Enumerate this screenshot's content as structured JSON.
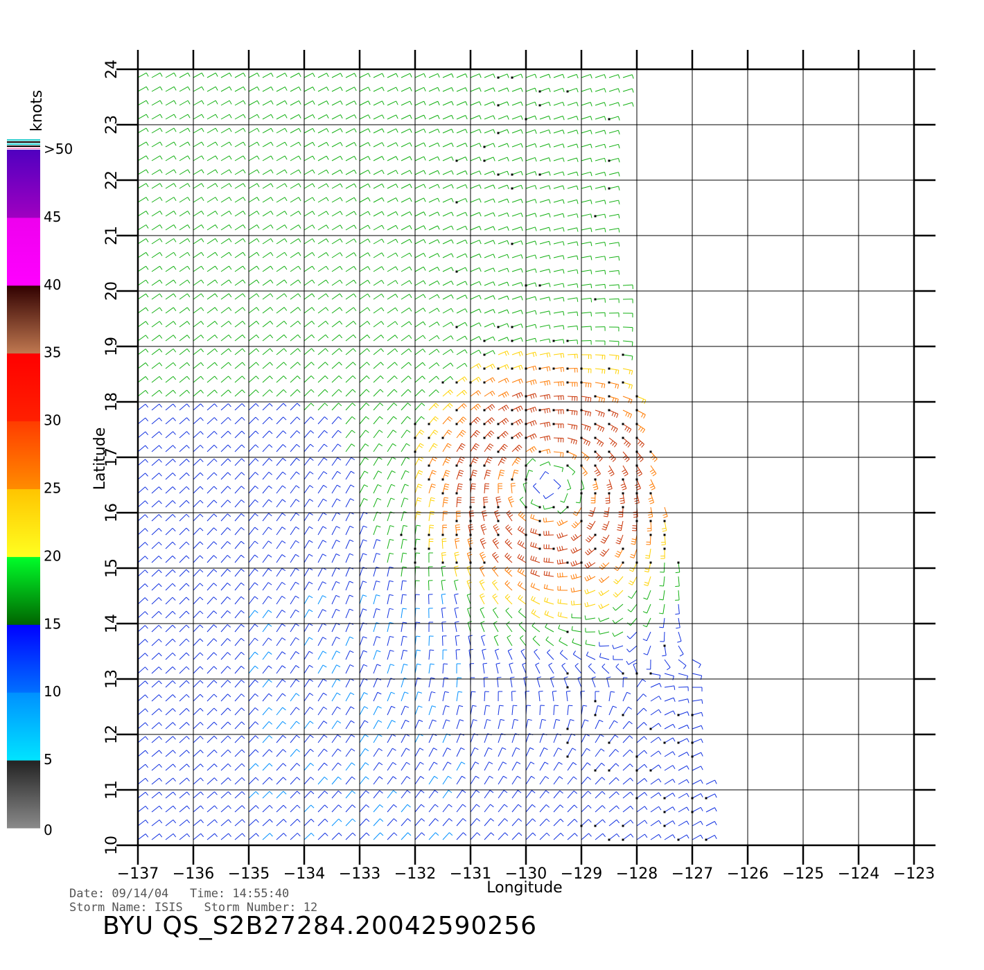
{
  "map": {
    "lon_range": [
      -137,
      -123
    ],
    "lat_range": [
      10,
      24
    ],
    "lon_ticks": [
      -137,
      -136,
      -135,
      -134,
      -133,
      -132,
      -131,
      -130,
      -129,
      -128,
      -127,
      -126,
      -125,
      -124,
      -123
    ],
    "lat_ticks": [
      10,
      11,
      12,
      13,
      14,
      15,
      16,
      17,
      18,
      19,
      20,
      21,
      22,
      23,
      24
    ],
    "grid": true,
    "xlabel": "Longitude",
    "ylabel": "Latitude",
    "storm_center_approx": {
      "lon": -129.6,
      "lat": 16.5
    },
    "layers": [
      "wind-barbs",
      "rain-flags",
      "lat-lon-grid"
    ]
  },
  "colorbar": {
    "unit": "knots",
    "labels": [
      "0",
      "5",
      "10",
      "15",
      "20",
      "25",
      "30",
      "35",
      "40",
      "45",
      ">50"
    ],
    "bands": [
      {
        "from": 0,
        "to": 5,
        "colors": [
          "#8a8a8a",
          "#222222"
        ]
      },
      {
        "from": 5,
        "to": 10,
        "colors": [
          "#00e4ff",
          "#0090ff"
        ]
      },
      {
        "from": 10,
        "to": 15,
        "colors": [
          "#0070ff",
          "#0000ff"
        ]
      },
      {
        "from": 15,
        "to": 20,
        "colors": [
          "#006400",
          "#00ff2a"
        ]
      },
      {
        "from": 20,
        "to": 25,
        "colors": [
          "#ffff20",
          "#ffc400"
        ]
      },
      {
        "from": 25,
        "to": 30,
        "colors": [
          "#ff8c00",
          "#ff3c00"
        ]
      },
      {
        "from": 30,
        "to": 35,
        "colors": [
          "#ff2000",
          "#ff0000"
        ]
      },
      {
        "from": 35,
        "to": 40,
        "colors": [
          "#c07850",
          "#300000"
        ]
      },
      {
        "from": 40,
        "to": 45,
        "colors": [
          "#ff00ff",
          "#ee00ee"
        ]
      },
      {
        "from": 45,
        "to": 50,
        "colors": [
          "#a000c0",
          "#5000c0"
        ]
      }
    ]
  },
  "info": {
    "line1": "Date: 09/14/04   Time: 14:55:40",
    "line2": "Storm Name: ISIS   Storm Number: 12",
    "title": "BYU  QS_S2B27284.20042590256"
  }
}
